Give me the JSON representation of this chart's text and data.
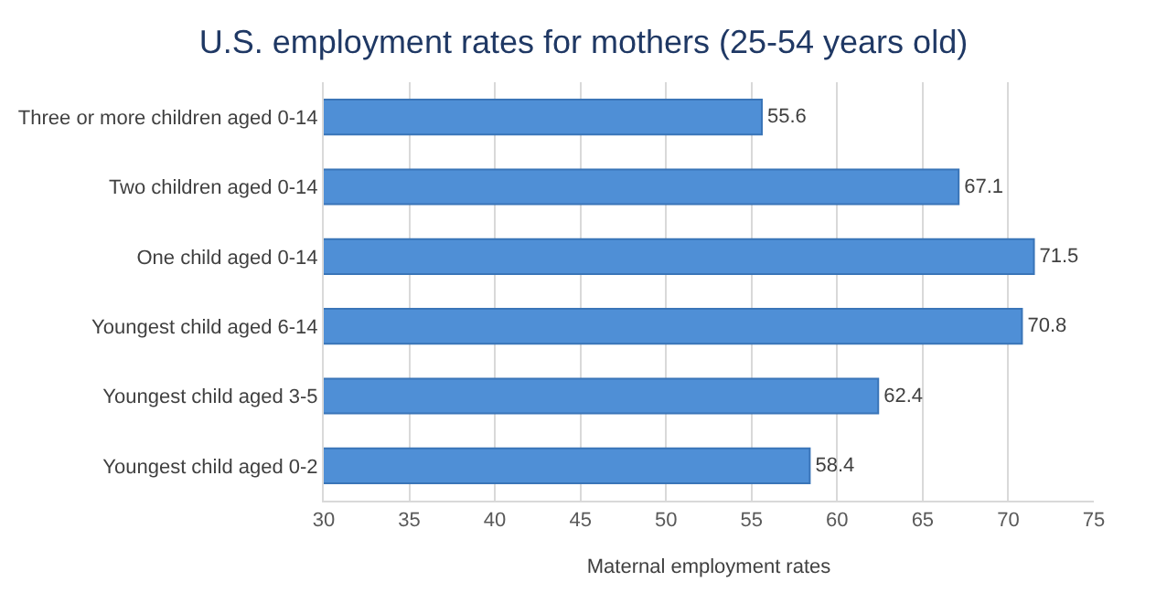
{
  "chart_data": {
    "type": "bar",
    "orientation": "horizontal",
    "title": "U.S. employment rates for mothers (25-54 years old)",
    "xlabel": "Maternal employment rates",
    "categories": [
      "Three or more children aged 0-14",
      "Two children aged 0-14",
      "One child aged 0-14",
      "Youngest child aged 6-14",
      "Youngest child aged 3-5",
      "Youngest child aged 0-2"
    ],
    "values": [
      55.6,
      67.1,
      71.5,
      70.8,
      62.4,
      58.4
    ],
    "color": "#4f8fd6",
    "data_labels": true,
    "xlim": [
      30,
      75
    ],
    "xticks": [
      30,
      35,
      40,
      45,
      50,
      55,
      60,
      65,
      70,
      75
    ],
    "grid": "x"
  }
}
